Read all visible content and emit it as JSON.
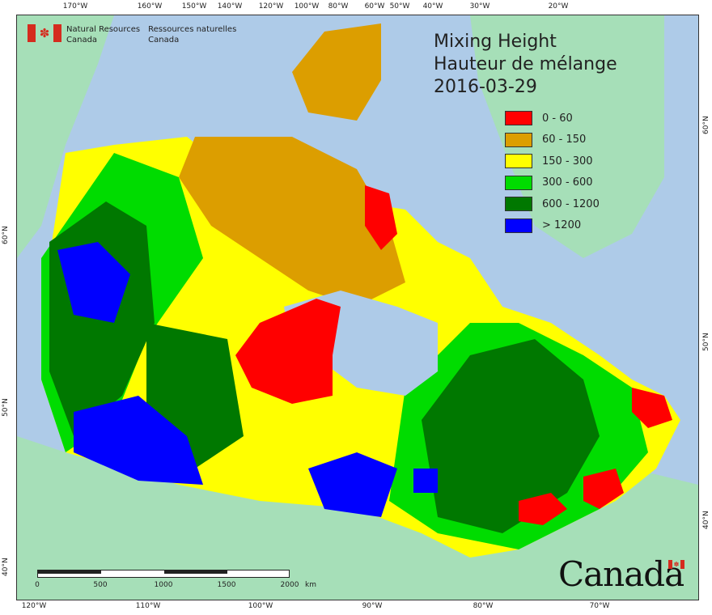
{
  "agency": {
    "name_en_line1": "Natural Resources",
    "name_en_line2": "Canada",
    "name_fr_line1": "Ressources naturelles",
    "name_fr_line2": "Canada"
  },
  "title": {
    "line1": "Mixing Height",
    "line2": "Hauteur de mélange",
    "date": "2016-03-29"
  },
  "legend": [
    {
      "label": "0 - 60",
      "color": "#ff0000"
    },
    {
      "label": "60 - 150",
      "color": "#dc9e00"
    },
    {
      "label": "150 - 300",
      "color": "#ffff00"
    },
    {
      "label": "300 - 600",
      "color": "#00dc00"
    },
    {
      "label": "600 - 1200",
      "color": "#007800"
    },
    {
      "label": "> 1200",
      "color": "#0000ff"
    }
  ],
  "graticule": {
    "top": [
      "170°W",
      "160°W",
      "150°W",
      "140°W",
      "120°W",
      "100°W",
      "80°W",
      "60°W",
      "50°W",
      "40°W",
      "30°W",
      "20°W"
    ],
    "bottom": [
      "120°W",
      "110°W",
      "100°W",
      "90°W",
      "80°W",
      "70°W"
    ],
    "left": [
      "60°N",
      "50°N",
      "40°N"
    ],
    "right": [
      "60°N",
      "50°N",
      "40°N"
    ]
  },
  "scalebar": {
    "labels": [
      "0",
      "500",
      "1000",
      "1500",
      "2000"
    ],
    "unit": "km"
  },
  "wordmark": "Canada",
  "colors": {
    "ocean": "#aecbe8",
    "foreign_land": "#a6dfb8",
    "boundary": "#333333"
  }
}
